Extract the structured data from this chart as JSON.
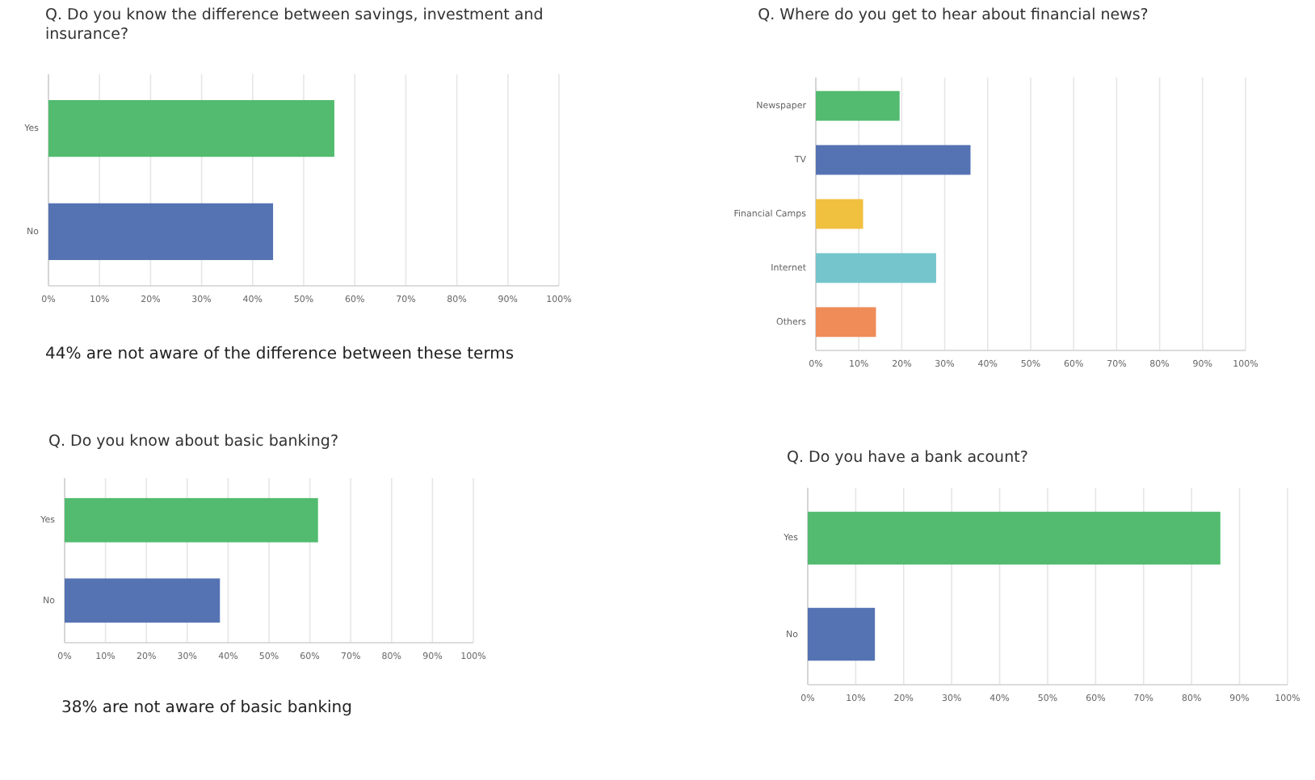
{
  "chart_data": [
    {
      "type": "bar",
      "orientation": "horizontal",
      "title": "Q. Do you know the difference between savings, investment and insurance?",
      "categories": [
        "Yes",
        "No"
      ],
      "values": [
        56,
        44
      ],
      "colors": [
        "#52bb6f",
        "#5573b3"
      ],
      "xlim": [
        0,
        100
      ],
      "xticks": [
        {
          "value": 0,
          "label": "0%"
        },
        {
          "value": 10,
          "label": "10%"
        },
        {
          "value": 20,
          "label": "20%"
        },
        {
          "value": 30,
          "label": "30%"
        },
        {
          "value": 40,
          "label": "40%"
        },
        {
          "value": 50,
          "label": "50%"
        },
        {
          "value": 60,
          "label": "60%"
        },
        {
          "value": 70,
          "label": "70%"
        },
        {
          "value": 80,
          "label": "80%"
        },
        {
          "value": 90,
          "label": "90%"
        },
        {
          "value": 100,
          "label": "100%"
        }
      ],
      "grid": "x",
      "annotations": [
        "44% are not aware of the difference between these terms"
      ]
    },
    {
      "type": "bar",
      "orientation": "horizontal",
      "title": "Q. Where do you get to hear about financial news?",
      "categories": [
        "Newspaper",
        "TV",
        "Financial Camps",
        "Internet",
        "Others"
      ],
      "values": [
        19.5,
        36,
        11,
        28,
        14
      ],
      "colors": [
        "#52bb6f",
        "#5573b3",
        "#f0c03f",
        "#74c5cc",
        "#ef8c58"
      ],
      "xlim": [
        0,
        100
      ],
      "xticks": [
        {
          "value": 0,
          "label": "0%"
        },
        {
          "value": 10,
          "label": "10%"
        },
        {
          "value": 20,
          "label": "20%"
        },
        {
          "value": 30,
          "label": "30%"
        },
        {
          "value": 40,
          "label": "40%"
        },
        {
          "value": 50,
          "label": "50%"
        },
        {
          "value": 60,
          "label": "60%"
        },
        {
          "value": 70,
          "label": "70%"
        },
        {
          "value": 80,
          "label": "80%"
        },
        {
          "value": 90,
          "label": "90%"
        },
        {
          "value": 100,
          "label": "100%"
        }
      ],
      "grid": "x"
    },
    {
      "type": "bar",
      "orientation": "horizontal",
      "title": "Q. Do you know about basic banking?",
      "categories": [
        "Yes",
        "No"
      ],
      "values": [
        62,
        38
      ],
      "colors": [
        "#52bb6f",
        "#5573b3"
      ],
      "xlim": [
        0,
        100
      ],
      "xticks": [
        {
          "value": 0,
          "label": "0%"
        },
        {
          "value": 10,
          "label": "10%"
        },
        {
          "value": 20,
          "label": "20%"
        },
        {
          "value": 30,
          "label": "30%"
        },
        {
          "value": 40,
          "label": "40%"
        },
        {
          "value": 50,
          "label": "50%"
        },
        {
          "value": 60,
          "label": "60%"
        },
        {
          "value": 70,
          "label": "70%"
        },
        {
          "value": 80,
          "label": "80%"
        },
        {
          "value": 90,
          "label": "90%"
        },
        {
          "value": 100,
          "label": "100%"
        }
      ],
      "grid": "x",
      "annotations": [
        "38%  are not aware of basic banking"
      ]
    },
    {
      "type": "bar",
      "orientation": "horizontal",
      "title": "Q. Do you have a bank acount?",
      "categories": [
        "Yes",
        "No"
      ],
      "values": [
        86,
        14
      ],
      "colors": [
        "#52bb6f",
        "#5573b3"
      ],
      "xlim": [
        0,
        100
      ],
      "xticks": [
        {
          "value": 0,
          "label": "0%"
        },
        {
          "value": 10,
          "label": "10%"
        },
        {
          "value": 20,
          "label": "20%"
        },
        {
          "value": 30,
          "label": "30%"
        },
        {
          "value": 40,
          "label": "40%"
        },
        {
          "value": 50,
          "label": "50%"
        },
        {
          "value": 60,
          "label": "60%"
        },
        {
          "value": 70,
          "label": "70%"
        },
        {
          "value": 80,
          "label": "80%"
        },
        {
          "value": 90,
          "label": "90%"
        },
        {
          "value": 100,
          "label": "100%"
        }
      ],
      "grid": "x"
    }
  ]
}
